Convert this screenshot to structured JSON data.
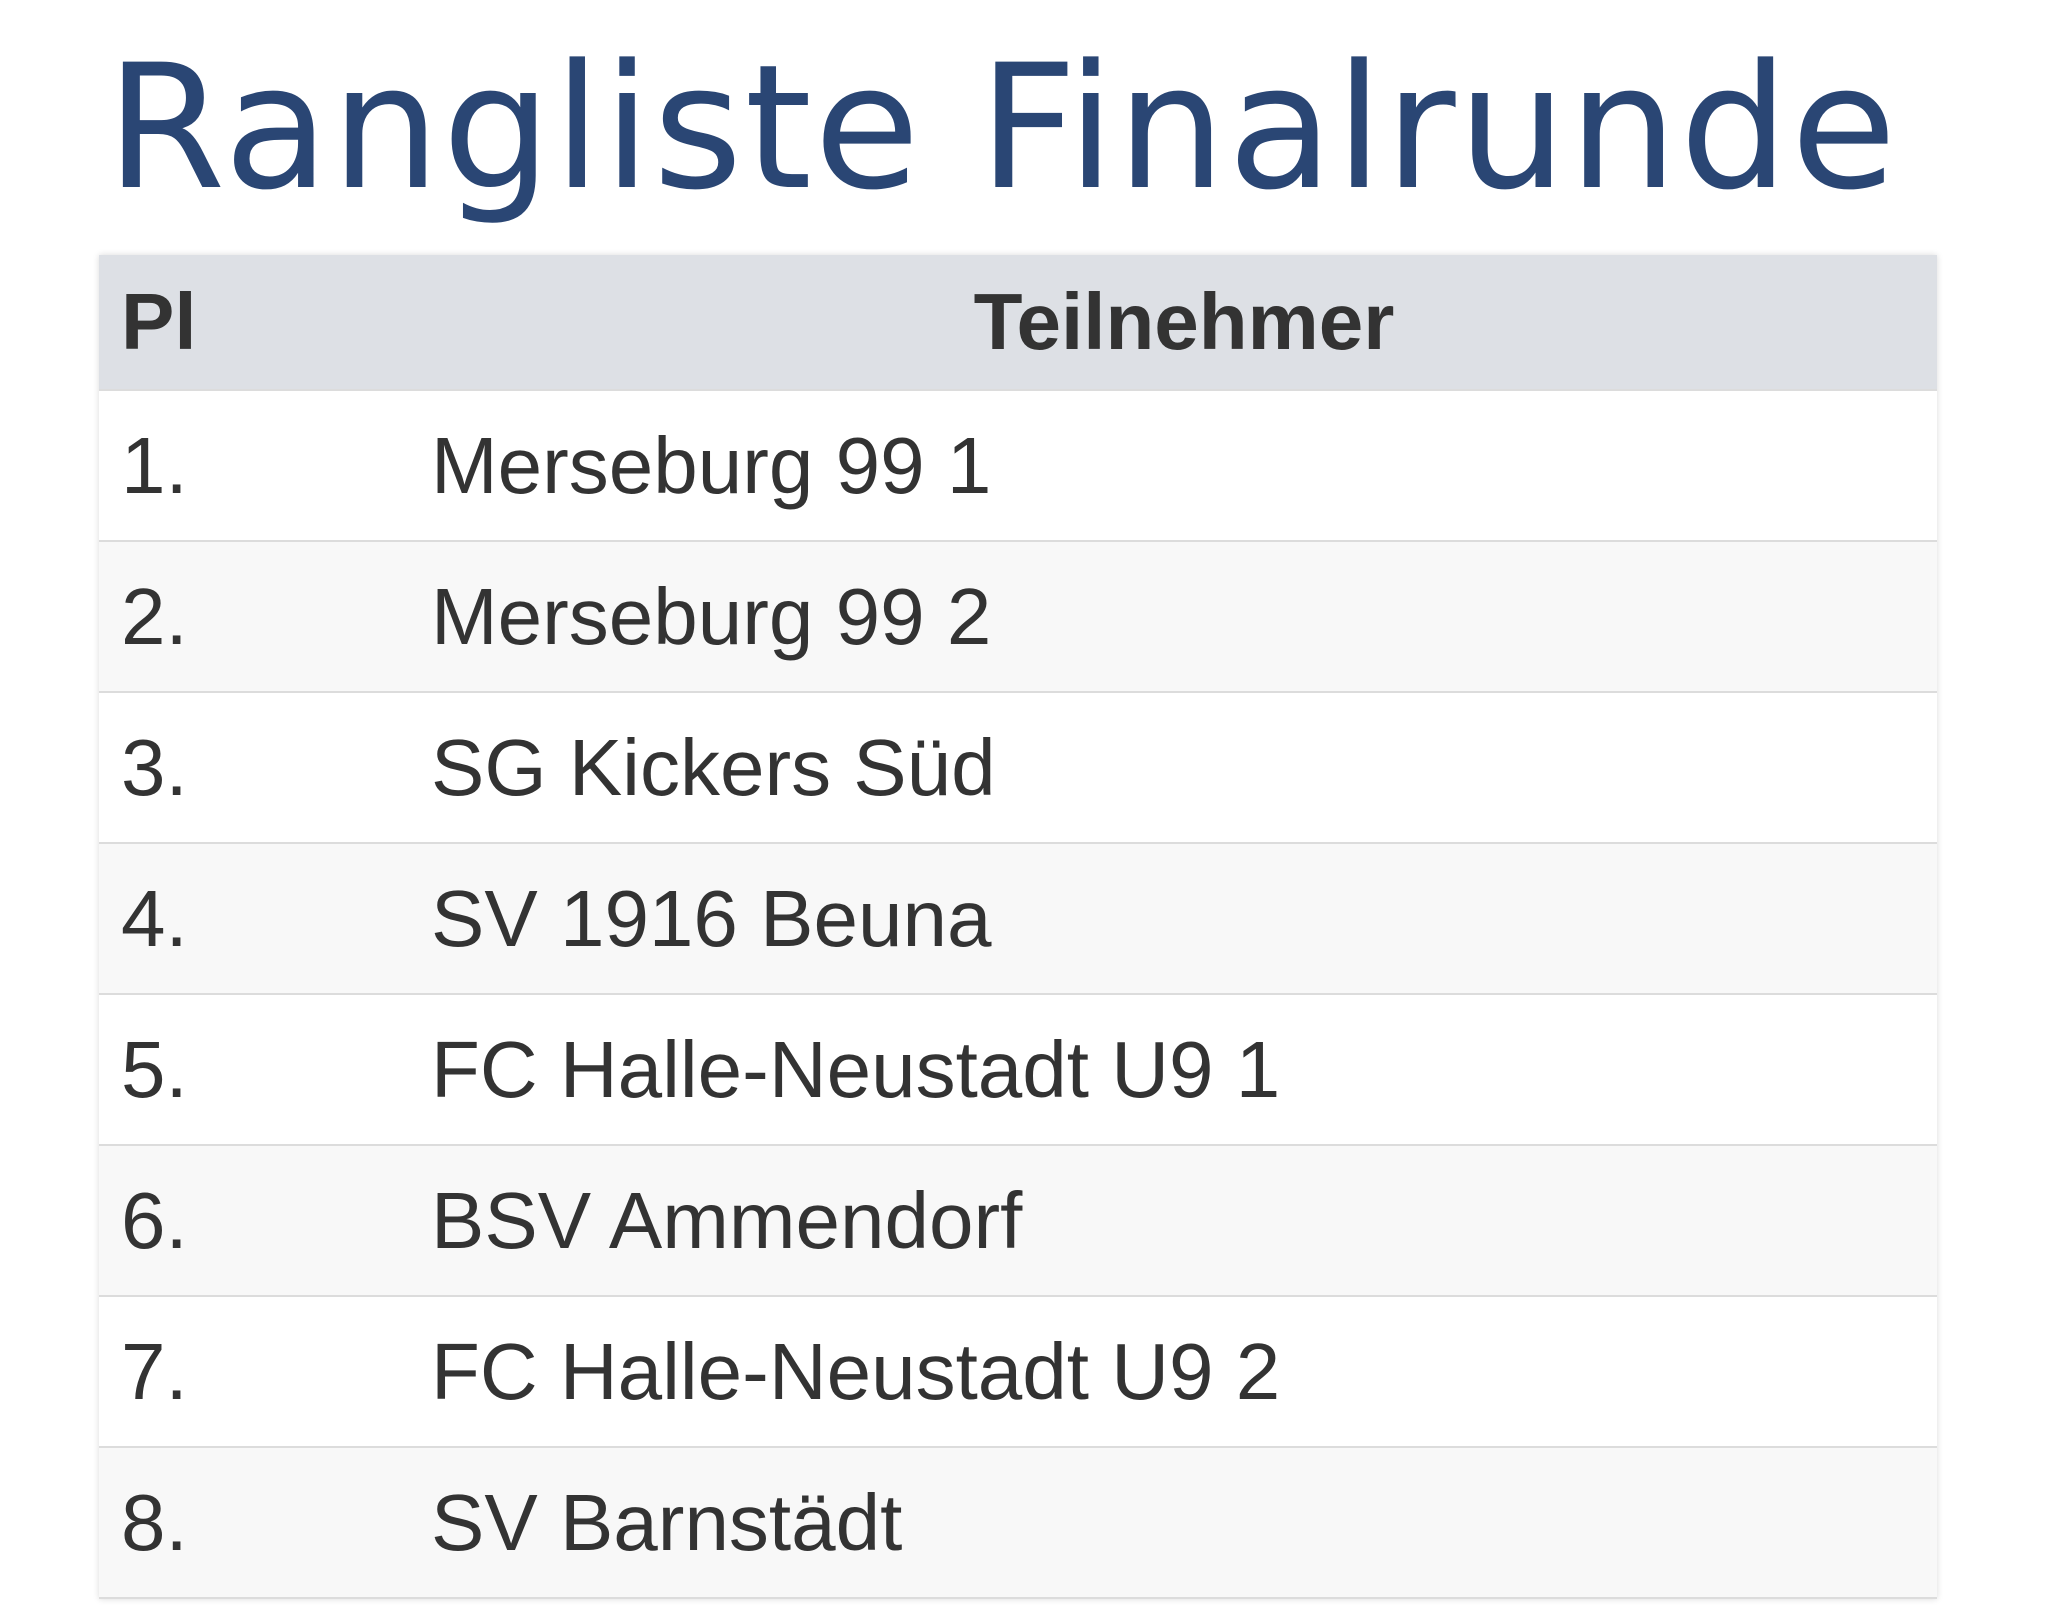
{
  "header": {
    "title": "Rangliste Finalrunde"
  },
  "table": {
    "columns": [
      "Pl",
      "Teilnehmer"
    ],
    "rows": [
      [
        "1.",
        "Merseburg 99 1"
      ],
      [
        "2.",
        "Merseburg 99 2"
      ],
      [
        "3.",
        "SG Kickers Süd"
      ],
      [
        "4.",
        "SV 1916 Beuna"
      ],
      [
        "5.",
        "FC Halle-Neustadt U9 1"
      ],
      [
        "6.",
        "BSV Ammendorf"
      ],
      [
        "7.",
        "FC Halle-Neustadt U9 2"
      ],
      [
        "8.",
        "SV Barnstädt"
      ]
    ]
  }
}
